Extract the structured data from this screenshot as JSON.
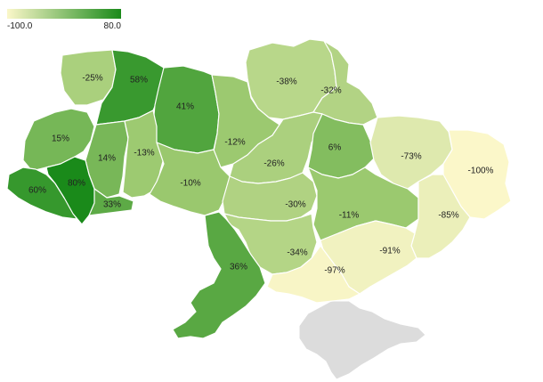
{
  "legend": {
    "min_label": "-100.0",
    "max_label": "80.0",
    "min_value": -100,
    "max_value": 80,
    "color_low": "#fbf7c9",
    "color_high": "#1a8a1a"
  },
  "colors": {
    "nodata": "#dcdcdc",
    "border": "#ffffff"
  },
  "regions": [
    {
      "id": "volyn",
      "label": "-25%",
      "value": -25
    },
    {
      "id": "rivne",
      "label": "58%",
      "value": 58
    },
    {
      "id": "zhytomyr",
      "label": "41%",
      "value": 41
    },
    {
      "id": "chernihiv",
      "label": "-38%",
      "value": -38
    },
    {
      "id": "sumy",
      "label": "-32%",
      "value": -32
    },
    {
      "id": "lviv",
      "label": "15%",
      "value": 15
    },
    {
      "id": "ternopil",
      "label": "14%",
      "value": 14
    },
    {
      "id": "khmelnytskyi",
      "label": "-13%",
      "value": -13
    },
    {
      "id": "kyiv",
      "label": "-12%",
      "value": -12
    },
    {
      "id": "poltava",
      "label": "-26%",
      "value": -26
    },
    {
      "id": "kharkiv",
      "label": "6%",
      "value": 6
    },
    {
      "id": "luhansk",
      "label": "-73%",
      "value": -73
    },
    {
      "id": "luhansk_east",
      "label": "-100%",
      "value": -100
    },
    {
      "id": "zakarpattia",
      "label": "60%",
      "value": 60
    },
    {
      "id": "ivano_frankivsk",
      "label": "80%",
      "value": 80
    },
    {
      "id": "chernivtsi",
      "label": "33%",
      "value": 33
    },
    {
      "id": "vinnytsia",
      "label": "-10%",
      "value": -10
    },
    {
      "id": "cherkasy",
      "label": "-30%",
      "value": -30
    },
    {
      "id": "dnipro",
      "label": "-11%",
      "value": -11
    },
    {
      "id": "donetsk",
      "label": "-85%",
      "value": -85
    },
    {
      "id": "kirovohrad",
      "label": "-34%",
      "value": -34
    },
    {
      "id": "odesa",
      "label": "36%",
      "value": 36
    },
    {
      "id": "zaporizhzhia",
      "label": "-91%",
      "value": -91
    },
    {
      "id": "kherson",
      "label": "-97%",
      "value": -97
    }
  ]
}
